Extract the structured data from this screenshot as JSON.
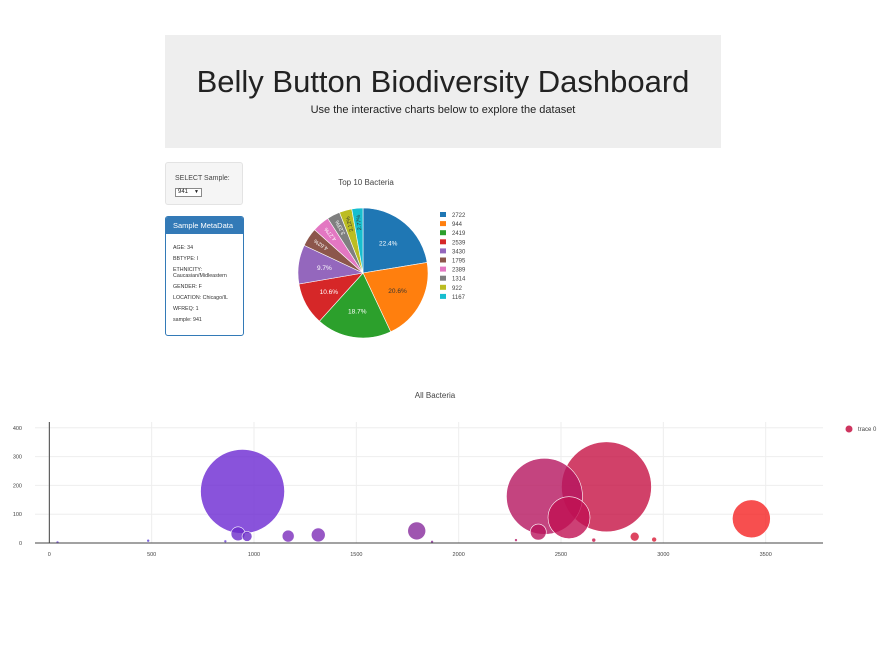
{
  "header": {
    "title": "Belly Button Biodiversity Dashboard",
    "subtitle": "Use the interactive charts below to explore the dataset"
  },
  "selector": {
    "label": "SELECT Sample:",
    "value": "941"
  },
  "metadata_panel": {
    "title": "Sample MetaData",
    "lines": [
      "AGE: 34",
      "BBTYPE: I",
      "ETHNICITY: Caucasian/Midleastern",
      "GENDER: F",
      "LOCATION: Chicago/IL",
      "WFREQ: 1",
      "sample: 941"
    ]
  },
  "chart_data": [
    {
      "type": "pie",
      "title": "Top 10 Bacteria",
      "labels": [
        "2722",
        "944",
        "2419",
        "2539",
        "3430",
        "1795",
        "2389",
        "1314",
        "922",
        "1167"
      ],
      "values": [
        22.4,
        20.6,
        18.7,
        10.6,
        9.7,
        4.62,
        4.27,
        3.23,
        3.12,
        2.77
      ],
      "value_labels": [
        "22.4%",
        "20.6%",
        "18.7%",
        "10.6%",
        "9.7%",
        "4.62%",
        "4.27%",
        "3.23%",
        "3.12%",
        "2.77%"
      ],
      "colors": [
        "#1f77b4",
        "#ff7f0e",
        "#2ca02c",
        "#d62728",
        "#9467bd",
        "#8c564b",
        "#e377c2",
        "#7f7f7f",
        "#bcbd22",
        "#17becf"
      ],
      "legend": "right"
    },
    {
      "type": "scatter",
      "title": "All Bacteria",
      "series": [
        {
          "name": "trace 0"
        }
      ],
      "legend": "top-right",
      "xlim": [
        -70,
        3780
      ],
      "ylim": [
        0,
        420
      ],
      "xticks": [
        "0",
        "500",
        "1000",
        "1500",
        "2000",
        "2500",
        "3000",
        "3500"
      ],
      "yticks": [
        "0",
        "100",
        "200",
        "300",
        "400"
      ],
      "grid": true,
      "points": [
        {
          "x": 40,
          "y": 2,
          "size": 3,
          "color": "#6a3fd8"
        },
        {
          "x": 483,
          "y": 8,
          "size": 3,
          "color": "#5b3fd4"
        },
        {
          "x": 860,
          "y": 6,
          "size": 3,
          "color": "#6c3fd6"
        },
        {
          "x": 944,
          "y": 179,
          "size": 84,
          "color": "#6c28d2"
        },
        {
          "x": 922,
          "y": 32,
          "size": 14,
          "color": "#6b2bc9"
        },
        {
          "x": 966,
          "y": 23,
          "size": 10,
          "color": "#6a2ac8"
        },
        {
          "x": 1167,
          "y": 24,
          "size": 12,
          "color": "#7a2cbb"
        },
        {
          "x": 1314,
          "y": 28,
          "size": 14,
          "color": "#7d2db7"
        },
        {
          "x": 1795,
          "y": 42,
          "size": 18,
          "color": "#872a9c"
        },
        {
          "x": 1870,
          "y": 4,
          "size": 3,
          "color": "#8a2a98"
        },
        {
          "x": 2280,
          "y": 10,
          "size": 3,
          "color": "#b81f6a"
        },
        {
          "x": 2389,
          "y": 38,
          "size": 16,
          "color": "#b9155c"
        },
        {
          "x": 2419,
          "y": 162,
          "size": 76,
          "color": "#b5155f"
        },
        {
          "x": 2539,
          "y": 88,
          "size": 42,
          "color": "#c01052"
        },
        {
          "x": 2660,
          "y": 10,
          "size": 4,
          "color": "#c91245"
        },
        {
          "x": 2722,
          "y": 195,
          "size": 90,
          "color": "#c61243"
        },
        {
          "x": 2860,
          "y": 22,
          "size": 9,
          "color": "#d4173a"
        },
        {
          "x": 2955,
          "y": 12,
          "size": 5,
          "color": "#d91a35"
        },
        {
          "x": 3430,
          "y": 84,
          "size": 38,
          "color": "#f52323"
        }
      ]
    }
  ]
}
